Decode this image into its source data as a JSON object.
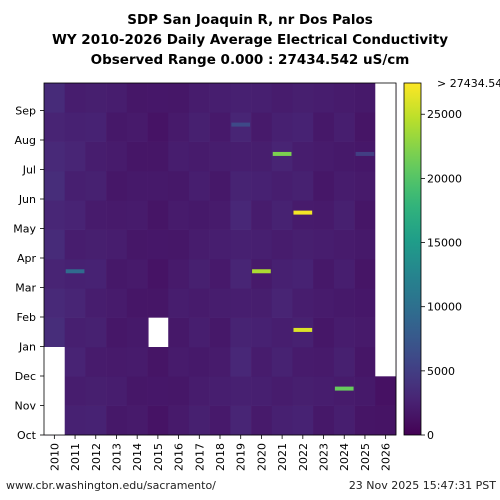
{
  "chart_data": {
    "type": "heatmap",
    "title": [
      "SDP San Joaquin R, nr Dos Palos",
      "WY 2010-2026 Daily Average Electrical Conductivity",
      "Observed Range 0.000 : 27434.542 uS/cm"
    ],
    "xlabel": "",
    "ylabel": "",
    "x_categories": [
      "2010",
      "2011",
      "2012",
      "2013",
      "2014",
      "2015",
      "2016",
      "2017",
      "2018",
      "2019",
      "2020",
      "2021",
      "2022",
      "2023",
      "2024",
      "2025",
      "2026"
    ],
    "y_tick_labels": [
      "Oct",
      "Nov",
      "Dec",
      "Jan",
      "Feb",
      "Mar",
      "Apr",
      "May",
      "Jun",
      "Jul",
      "Aug",
      "Sep"
    ],
    "colorbar": {
      "min": 0,
      "max": 27434.542,
      "ticks": [
        0,
        5000,
        10000,
        15000,
        20000,
        25000
      ],
      "tick_labels": [
        "0",
        "5000",
        "10000",
        "15000",
        "20000",
        "25000"
      ],
      "top_label": "> 27434.54",
      "colormap": "viridis"
    },
    "background_uS_cm": [
      3200,
      2600,
      2400,
      2000,
      1900,
      1700,
      2000,
      2200,
      2100,
      2700,
      2300,
      2500,
      2400,
      2000,
      2200,
      1800,
      1500
    ],
    "no_data": [
      {
        "year": "2010",
        "from_month": "Oct",
        "to_month": "Dec"
      },
      {
        "year": "2015",
        "from_month": "Jan",
        "to_month": "Jan"
      },
      {
        "year": "2026",
        "from_month": "Dec",
        "to_month": "Sep"
      }
    ],
    "highlights": [
      {
        "year": "2011",
        "month": "Mar",
        "value": 9500
      },
      {
        "year": "2019",
        "month": "Aug",
        "value": 6000
      },
      {
        "year": "2020",
        "month": "Mar",
        "value": 24000
      },
      {
        "year": "2021",
        "month": "Jul",
        "value": 22000
      },
      {
        "year": "2022",
        "month": "May",
        "value": 27000
      },
      {
        "year": "2022",
        "month": "Jan",
        "value": 26000
      },
      {
        "year": "2024",
        "month": "Nov",
        "value": 21000
      },
      {
        "year": "2025",
        "month": "Jul",
        "value": 5000
      }
    ]
  },
  "footer": {
    "source_url": "www.cbr.washington.edu/sacramento/",
    "timestamp": "23 Nov 2025 15:47:31 PST"
  }
}
